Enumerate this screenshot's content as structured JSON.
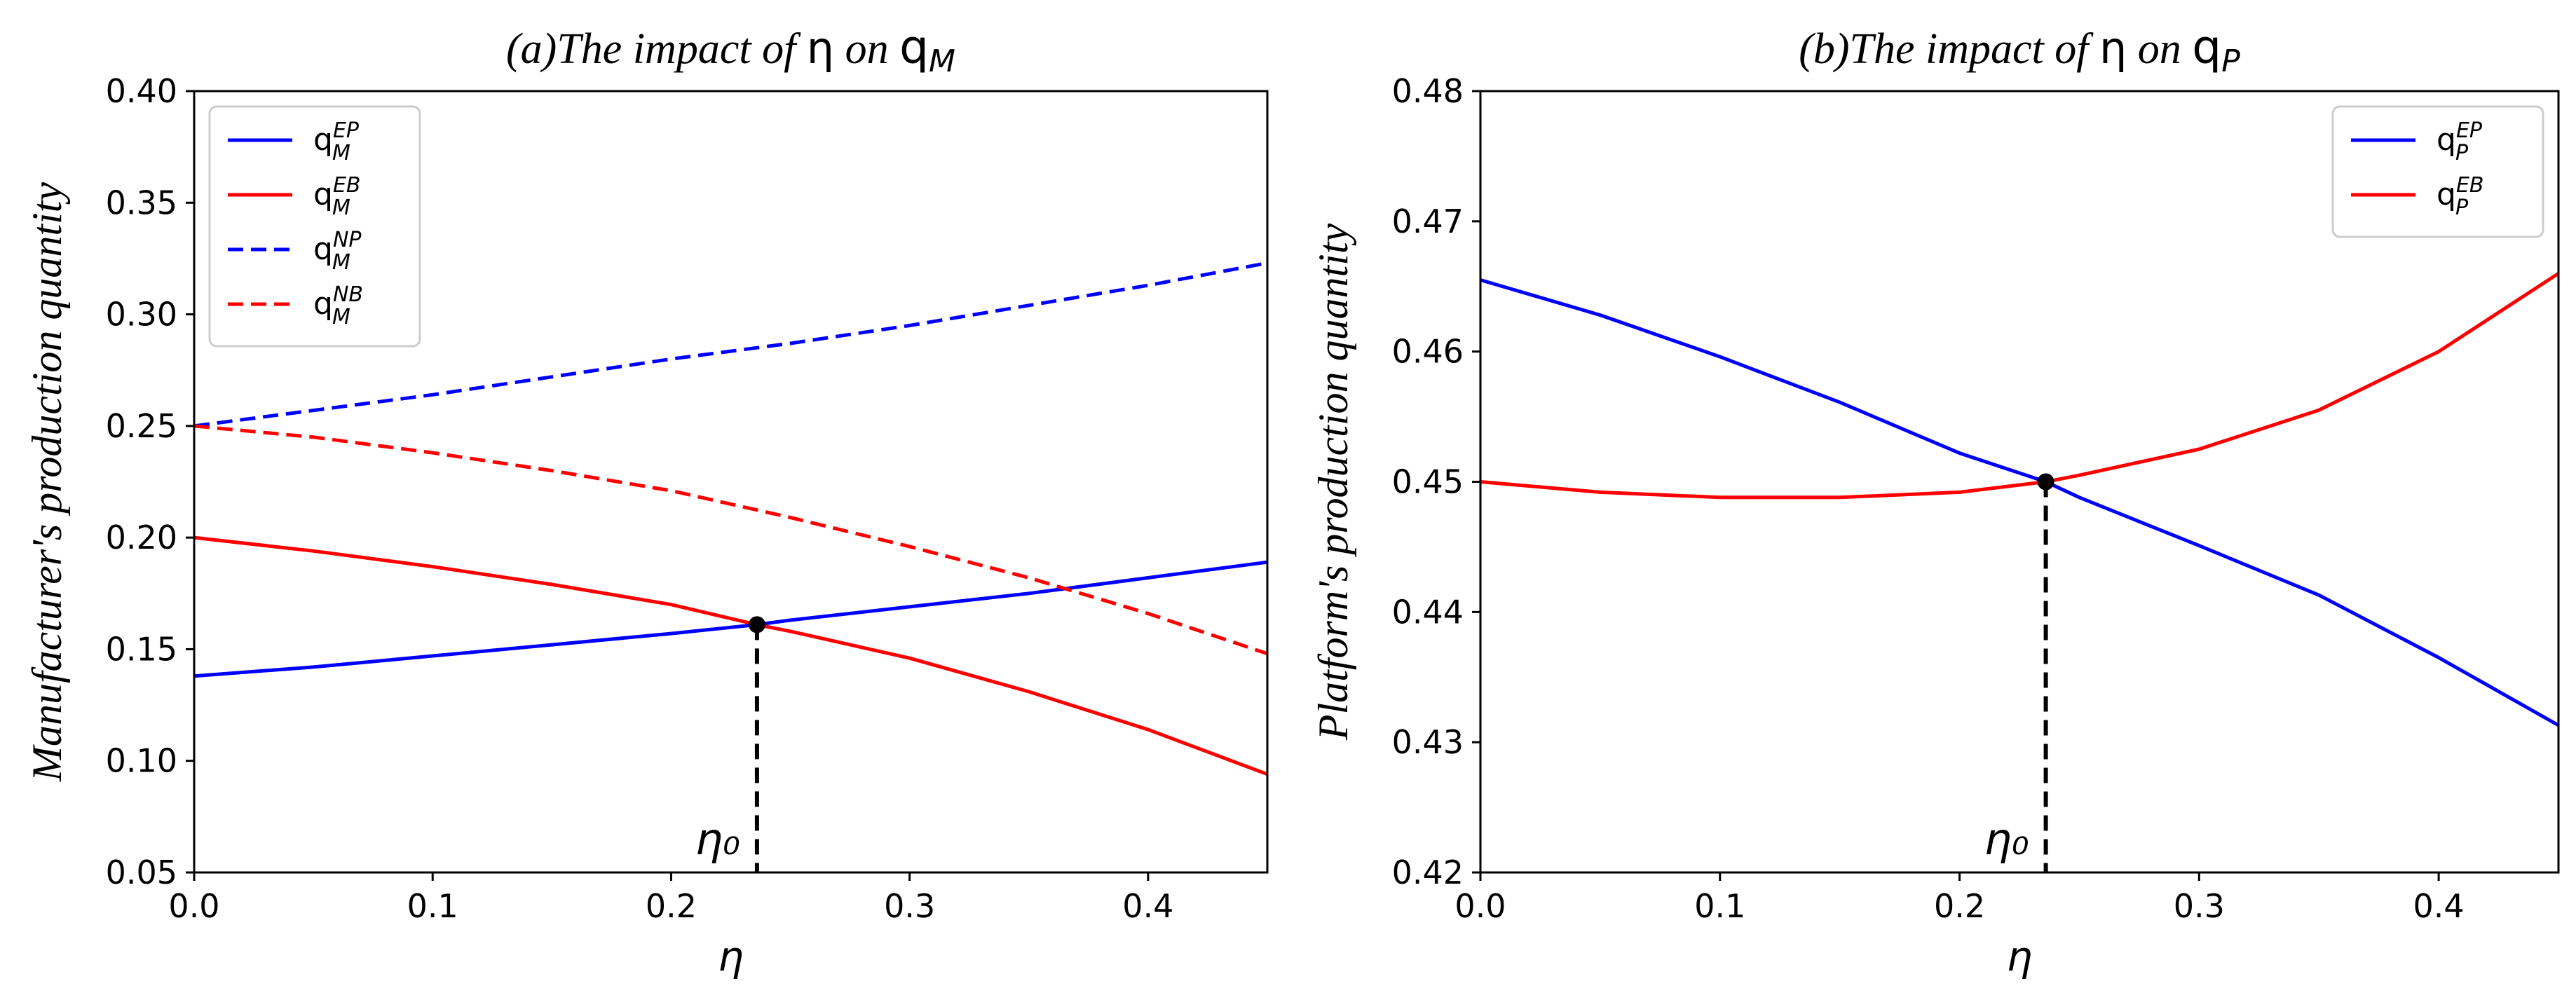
{
  "chart_data": [
    {
      "type": "line",
      "title": "(a)The impact of η on q_M",
      "title_prefix": "(a)The impact of ",
      "title_symbol": "η",
      "title_mid": " on ",
      "title_var": "q",
      "title_sub": "M",
      "xlabel": "η",
      "ylabel": "Manufacturer's production quantity",
      "xlim": [
        0,
        0.45
      ],
      "ylim": [
        0.05,
        0.4
      ],
      "xticks": [
        "0.0",
        "0.1",
        "0.2",
        "0.3",
        "0.4"
      ],
      "yticks": [
        "0.05",
        "0.10",
        "0.15",
        "0.20",
        "0.25",
        "0.30",
        "0.35",
        "0.40"
      ],
      "legend_position": "top-left",
      "annotation": {
        "label": "η₀",
        "x": 0.236,
        "y": 0.161
      },
      "series": [
        {
          "name": "q_M^EP",
          "base": "q",
          "sub": "M",
          "sup": "EP",
          "color": "#0000ff",
          "style": "solid",
          "x": [
            0,
            0.05,
            0.1,
            0.15,
            0.2,
            0.236,
            0.25,
            0.3,
            0.35,
            0.4,
            0.45
          ],
          "y": [
            0.138,
            0.142,
            0.147,
            0.152,
            0.157,
            0.161,
            0.163,
            0.169,
            0.175,
            0.182,
            0.189
          ]
        },
        {
          "name": "q_M^EB",
          "base": "q",
          "sub": "M",
          "sup": "EB",
          "color": "#ff0000",
          "style": "solid",
          "x": [
            0,
            0.05,
            0.1,
            0.15,
            0.2,
            0.236,
            0.25,
            0.3,
            0.35,
            0.4,
            0.45
          ],
          "y": [
            0.2,
            0.194,
            0.187,
            0.179,
            0.17,
            0.161,
            0.158,
            0.146,
            0.131,
            0.114,
            0.094
          ]
        },
        {
          "name": "q_M^NP",
          "base": "q",
          "sub": "M",
          "sup": "NP",
          "color": "#0000ff",
          "style": "dashed",
          "x": [
            0,
            0.05,
            0.1,
            0.15,
            0.2,
            0.25,
            0.3,
            0.35,
            0.4,
            0.45
          ],
          "y": [
            0.25,
            0.257,
            0.264,
            0.272,
            0.28,
            0.287,
            0.295,
            0.304,
            0.313,
            0.323
          ]
        },
        {
          "name": "q_M^NB",
          "base": "q",
          "sub": "M",
          "sup": "NB",
          "color": "#ff0000",
          "style": "dashed",
          "x": [
            0,
            0.05,
            0.1,
            0.15,
            0.2,
            0.25,
            0.3,
            0.35,
            0.4,
            0.45
          ],
          "y": [
            0.25,
            0.245,
            0.238,
            0.23,
            0.221,
            0.209,
            0.196,
            0.182,
            0.166,
            0.148
          ]
        }
      ]
    },
    {
      "type": "line",
      "title": "(b)The impact of η on q_P",
      "title_prefix": "(b)The impact of ",
      "title_symbol": "η",
      "title_mid": " on ",
      "title_var": "q",
      "title_sub": "P",
      "xlabel": "η",
      "ylabel": "Platform's production quantity",
      "xlim": [
        0,
        0.45
      ],
      "ylim": [
        0.42,
        0.48
      ],
      "xticks": [
        "0.0",
        "0.1",
        "0.2",
        "0.3",
        "0.4"
      ],
      "yticks": [
        "0.42",
        "0.43",
        "0.44",
        "0.45",
        "0.46",
        "0.47",
        "0.48"
      ],
      "legend_position": "top-right",
      "annotation": {
        "label": "η₀",
        "x": 0.236,
        "y": 0.45
      },
      "series": [
        {
          "name": "q_P^EP",
          "base": "q",
          "sub": "P",
          "sup": "EP",
          "color": "#0000ff",
          "style": "solid",
          "x": [
            0,
            0.05,
            0.1,
            0.15,
            0.2,
            0.236,
            0.25,
            0.3,
            0.35,
            0.4,
            0.45
          ],
          "y": [
            0.4655,
            0.4628,
            0.4596,
            0.4561,
            0.4522,
            0.45,
            0.4488,
            0.4451,
            0.4413,
            0.4365,
            0.4313
          ]
        },
        {
          "name": "q_P^EB",
          "base": "q",
          "sub": "P",
          "sup": "EB",
          "color": "#ff0000",
          "style": "solid",
          "x": [
            0,
            0.05,
            0.1,
            0.15,
            0.2,
            0.236,
            0.25,
            0.3,
            0.35,
            0.4,
            0.45
          ],
          "y": [
            0.45,
            0.4492,
            0.4488,
            0.4488,
            0.4492,
            0.45,
            0.4505,
            0.4525,
            0.4555,
            0.46,
            0.466
          ]
        }
      ]
    }
  ]
}
